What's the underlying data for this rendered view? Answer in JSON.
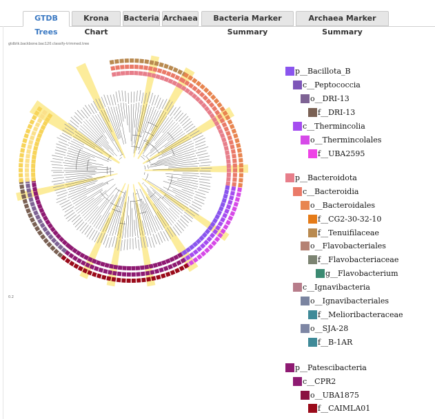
{
  "tabs": [
    "GTDB Trees",
    "Krona Chart",
    "Bacteria",
    "Archaea",
    "Bacteria Marker Summary",
    "Archaea Marker Summary"
  ],
  "active_tab": "GTDB Trees",
  "tree": {
    "filename": "gtdbtk.backbone.bac120.classify-trimmed.tree",
    "scale_label": "0.2"
  },
  "legend": [
    {
      "label": "p__Bacillota_B",
      "color": "#8a55ee"
    },
    {
      "label": "c__Peptococcia",
      "color": "#7d55b8"
    },
    {
      "label": "o__DRI-13",
      "color": "#7e6394"
    },
    {
      "label": "f__DRI-13",
      "color": "#7a6154"
    },
    {
      "label": "c__Thermincolia",
      "color": "#a54cf0"
    },
    {
      "label": "o__Thermincolales",
      "color": "#d64ae8"
    },
    {
      "label": "f__UBA2595",
      "color": "#ee44e6"
    },
    {
      "label": "p__Bacteroidota",
      "color": "#e77e8a"
    },
    {
      "label": "c__Bacteroidia",
      "color": "#ea7a68"
    },
    {
      "label": "o__Bacteroidales",
      "color": "#e88550"
    },
    {
      "label": "f__CG2-30-32-10",
      "color": "#e57b18"
    },
    {
      "label": "f__Tenuifilaceae",
      "color": "#b98a50"
    },
    {
      "label": "o__Flavobacteriales",
      "color": "#b58274"
    },
    {
      "label": "f__Flavobacteriaceae",
      "color": "#7c8472"
    },
    {
      "label": "g__Flavobacterium",
      "color": "#3b8a72"
    },
    {
      "label": "c__Ignavibacteria",
      "color": "#b77c8a"
    },
    {
      "label": "o__Ignavibacteriales",
      "color": "#7b84a0"
    },
    {
      "label": "f__Melioribacteraceae",
      "color": "#3f8a98"
    },
    {
      "label": "o__SJA-28",
      "color": "#7e86a4"
    },
    {
      "label": "f__B-1AR",
      "color": "#3f8a98"
    },
    {
      "label": "p__Patescibacteria",
      "color": "#8e1a72"
    },
    {
      "label": "c__CPR2",
      "color": "#8e1a72"
    },
    {
      "label": "o__UBA1875",
      "color": "#8a1040"
    },
    {
      "label": "f__CAIMLA01",
      "color": "#9a0a1a"
    }
  ]
}
